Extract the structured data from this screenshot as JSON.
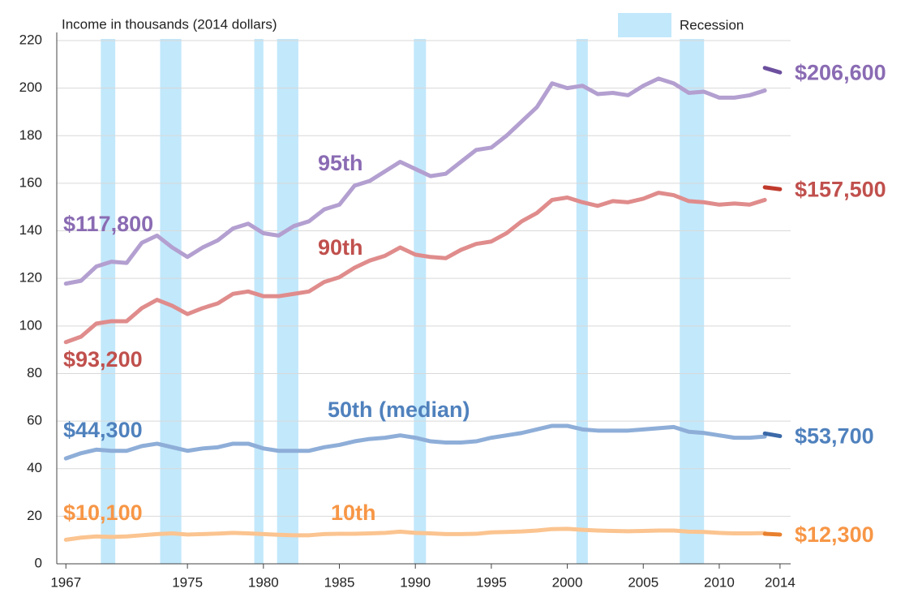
{
  "chart_data": {
    "type": "line",
    "title": "Income in thousands (2014 dollars)",
    "x": [
      1967,
      1968,
      1969,
      1970,
      1971,
      1972,
      1973,
      1974,
      1975,
      1976,
      1977,
      1978,
      1979,
      1980,
      1981,
      1982,
      1983,
      1984,
      1985,
      1986,
      1987,
      1988,
      1989,
      1990,
      1991,
      1992,
      1993,
      1994,
      1995,
      1996,
      1997,
      1998,
      1999,
      2000,
      2001,
      2002,
      2003,
      2004,
      2005,
      2006,
      2007,
      2008,
      2009,
      2010,
      2011,
      2012,
      2013
    ],
    "end_x": [
      2013,
      2014
    ],
    "xlim": [
      1966.4,
      2014.7
    ],
    "xticks": [
      1967,
      1975,
      1980,
      1985,
      1990,
      1995,
      2000,
      2005,
      2010,
      2014
    ],
    "ylim": [
      0,
      220
    ],
    "yticks": [
      0,
      20,
      40,
      60,
      80,
      100,
      120,
      140,
      160,
      180,
      200,
      220
    ],
    "grid": true,
    "recession_label": "Recession",
    "recession_color": "#c2e8fb",
    "recessions": [
      [
        1969.3,
        1970.25
      ],
      [
        1973.2,
        1974.6
      ],
      [
        1979.4,
        1980.0
      ],
      [
        1980.9,
        1982.3
      ],
      [
        1989.9,
        1990.7
      ],
      [
        2000.6,
        2001.35
      ],
      [
        2007.4,
        2009.0
      ]
    ],
    "series": [
      {
        "name": "95th",
        "color": "#b39fd0",
        "label_color": "#8a6bb3",
        "end_color": "#6c4f9e",
        "values": [
          117.8,
          119,
          125,
          127,
          126.5,
          135,
          138,
          133,
          129,
          133,
          136,
          141,
          143,
          139,
          138,
          142,
          144,
          149,
          151,
          159,
          161,
          165,
          169,
          166,
          163,
          164,
          169,
          174,
          175,
          180,
          186,
          192,
          202,
          200,
          201,
          197.5,
          198,
          197,
          201,
          204,
          202,
          198,
          198.5,
          196,
          196,
          197,
          199
        ],
        "value_labels": [
          "$117,800",
          null,
          null,
          null,
          null,
          null,
          null,
          null,
          null,
          null,
          null,
          null,
          null,
          null,
          null,
          null,
          null,
          null,
          null,
          null,
          null,
          null,
          null,
          null,
          null,
          null,
          null,
          null,
          null,
          null,
          null,
          null,
          null,
          null,
          null,
          null,
          null,
          null,
          null,
          null,
          null,
          null,
          null,
          null,
          null,
          null,
          null
        ],
        "end_values": [
          208.5,
          206.6
        ],
        "end_value_labels": [
          null,
          "$206,600"
        ]
      },
      {
        "name": "90th",
        "color": "#e08c8c",
        "label_color": "#c0504d",
        "end_color": "#c0392b",
        "values": [
          93.2,
          95.5,
          101,
          102,
          102,
          107.5,
          111,
          108.5,
          105,
          107.5,
          109.5,
          113.5,
          114.5,
          112.5,
          112.5,
          113.5,
          114.5,
          118.5,
          120.5,
          124.5,
          127.5,
          129.5,
          133,
          130,
          129,
          128.5,
          132,
          134.5,
          135.5,
          139,
          144,
          147.5,
          153,
          154,
          152,
          150.5,
          152.5,
          152,
          153.5,
          156,
          155,
          152.5,
          152,
          151,
          151.5,
          151,
          153
        ],
        "value_labels": [
          "$93,200",
          null,
          null,
          null,
          null,
          null,
          null,
          null,
          null,
          null,
          null,
          null,
          null,
          null,
          null,
          null,
          null,
          null,
          null,
          null,
          null,
          null,
          null,
          null,
          null,
          null,
          null,
          null,
          null,
          null,
          null,
          null,
          null,
          null,
          null,
          null,
          null,
          null,
          null,
          null,
          null,
          null,
          null,
          null,
          null,
          null,
          null
        ],
        "end_values": [
          158.3,
          157.5
        ],
        "end_value_labels": [
          null,
          "$157,500"
        ]
      },
      {
        "name": "50th (median)",
        "color": "#8eaed8",
        "label_color": "#4f81bd",
        "end_color": "#3b69a8",
        "values": [
          44.3,
          46.5,
          48,
          47.5,
          47.5,
          49.5,
          50.5,
          49,
          47.5,
          48.5,
          49,
          50.5,
          50.5,
          48.5,
          47.5,
          47.5,
          47.5,
          49,
          50,
          51.5,
          52.5,
          53,
          54,
          53,
          51.5,
          51,
          51,
          51.5,
          53,
          54,
          55,
          56.5,
          58,
          58,
          56.5,
          56,
          56,
          56,
          56.5,
          57,
          57.5,
          55.5,
          55,
          54,
          53,
          53,
          53.5
        ],
        "value_labels": [
          "$44,300",
          null,
          null,
          null,
          null,
          null,
          null,
          null,
          null,
          null,
          null,
          null,
          null,
          null,
          null,
          null,
          null,
          null,
          null,
          null,
          null,
          null,
          null,
          null,
          null,
          null,
          null,
          null,
          null,
          null,
          null,
          null,
          null,
          null,
          null,
          null,
          null,
          null,
          null,
          null,
          null,
          null,
          null,
          null,
          null,
          null,
          null
        ],
        "end_values": [
          54.8,
          53.7
        ],
        "end_value_labels": [
          null,
          "$53,700"
        ]
      },
      {
        "name": "10th",
        "color": "#fbc490",
        "label_color": "#f79646",
        "end_color": "#e8802e",
        "values": [
          10.1,
          11,
          11.5,
          11.3,
          11.5,
          12,
          12.5,
          12.8,
          12.3,
          12.5,
          12.7,
          13,
          12.8,
          12.5,
          12.2,
          12,
          12,
          12.5,
          12.6,
          12.6,
          12.8,
          13,
          13.5,
          13,
          12.8,
          12.5,
          12.5,
          12.6,
          13.2,
          13.4,
          13.6,
          14,
          14.6,
          14.7,
          14.3,
          14,
          13.8,
          13.7,
          13.8,
          14,
          14,
          13.5,
          13.4,
          13,
          12.8,
          12.8,
          12.9
        ],
        "value_labels": [
          "$10,100",
          null,
          null,
          null,
          null,
          null,
          null,
          null,
          null,
          null,
          null,
          null,
          null,
          null,
          null,
          null,
          null,
          null,
          null,
          null,
          null,
          null,
          null,
          null,
          null,
          null,
          null,
          null,
          null,
          null,
          null,
          null,
          null,
          null,
          null,
          null,
          null,
          null,
          null,
          null,
          null,
          null,
          null,
          null,
          null,
          null,
          null
        ],
        "end_values": [
          12.6,
          12.3
        ],
        "end_value_labels": [
          null,
          "$12,300"
        ]
      }
    ]
  }
}
